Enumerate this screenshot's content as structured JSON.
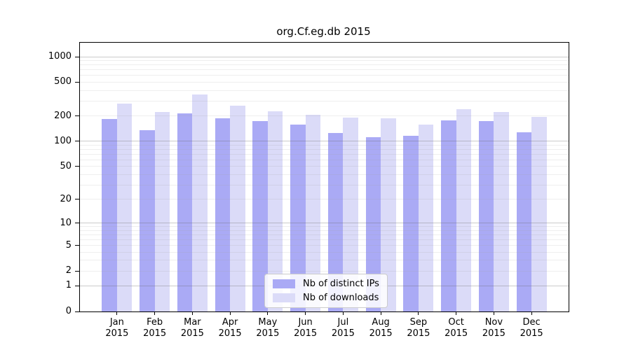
{
  "chart_data": {
    "type": "bar",
    "title": "org.Cf.eg.db 2015",
    "scale": "log1p",
    "grid": true,
    "legend_position": "bottom-center",
    "categories": [
      "Jan",
      "Feb",
      "Mar",
      "Apr",
      "May",
      "Jun",
      "Jul",
      "Aug",
      "Sep",
      "Oct",
      "Nov",
      "Dec"
    ],
    "year_label": "2015",
    "series": [
      {
        "name": "Nb of distinct IPs",
        "color": "#aaaaf5",
        "values": [
          183,
          135,
          216,
          187,
          172,
          158,
          126,
          112,
          117,
          178,
          175,
          127
        ]
      },
      {
        "name": "Nb of downloads",
        "color": "#dbdbf8",
        "values": [
          281,
          222,
          359,
          266,
          228,
          206,
          190,
          186,
          158,
          242,
          222,
          196
        ]
      }
    ],
    "yticks": [
      0,
      1,
      2,
      5,
      10,
      20,
      50,
      100,
      200,
      500,
      1000
    ],
    "ylim": [
      0,
      1000
    ],
    "xlabel": "",
    "ylabel": ""
  }
}
